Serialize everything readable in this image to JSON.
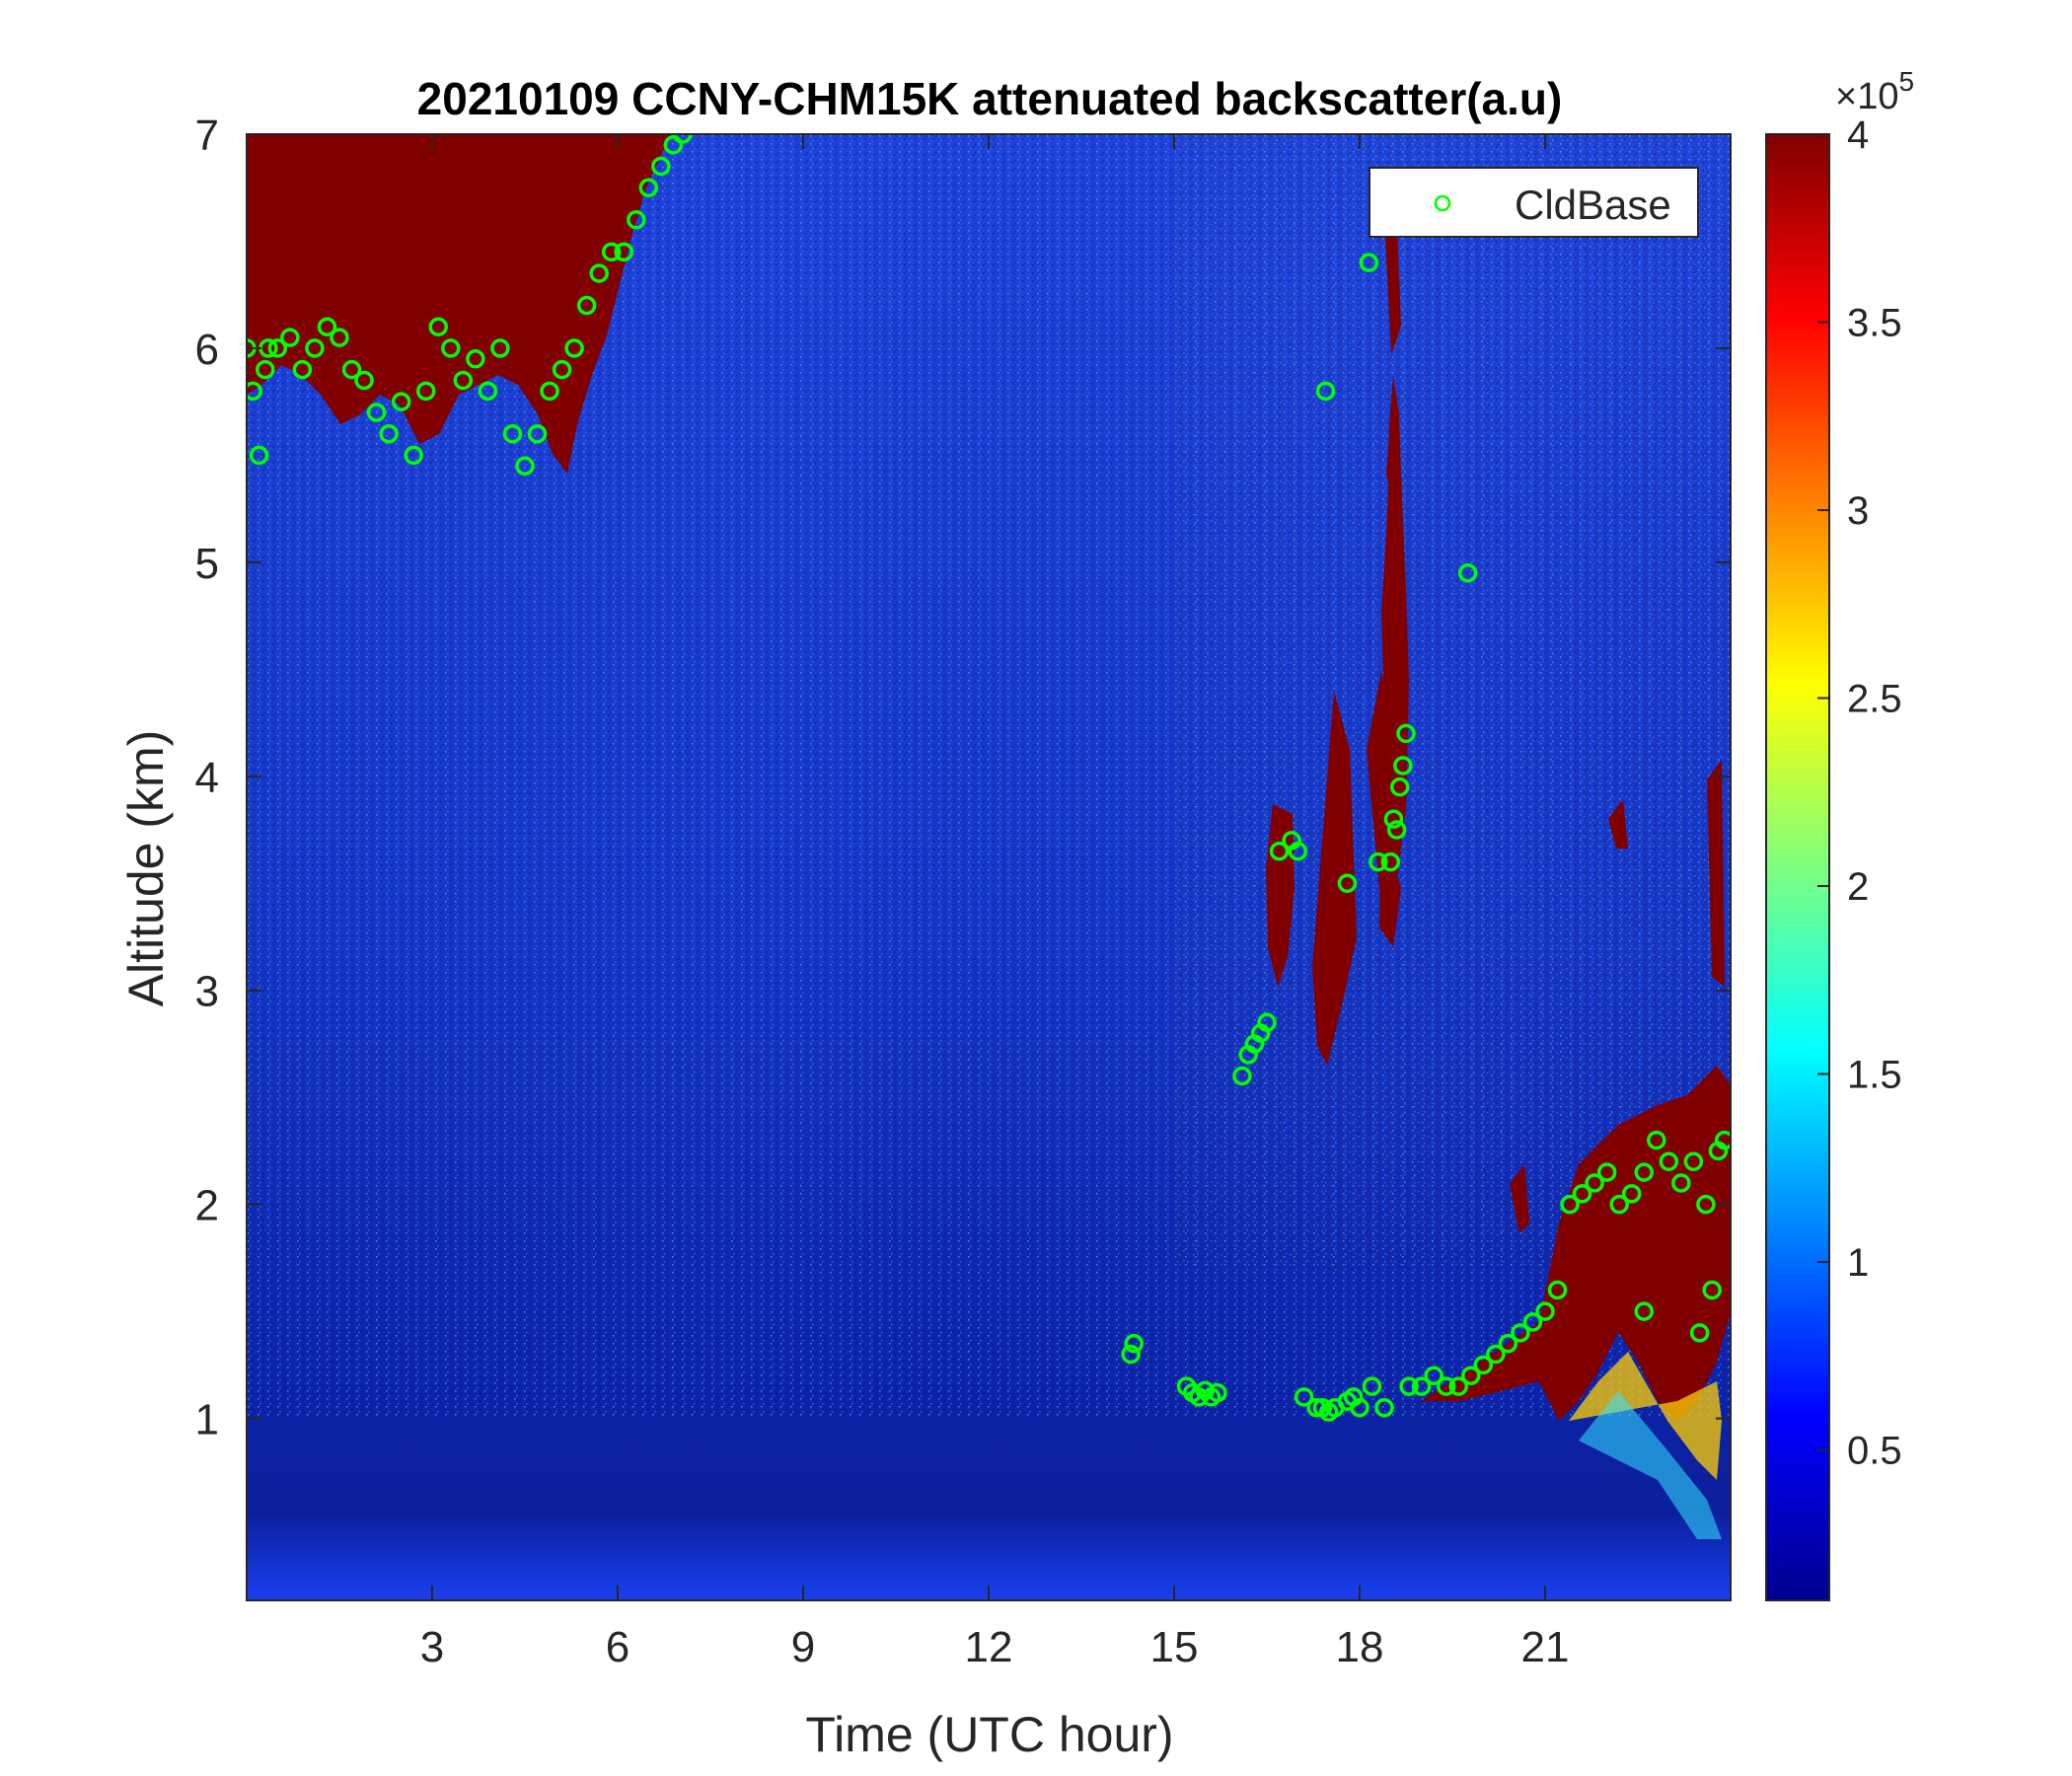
{
  "chart_data": {
    "type": "heatmap",
    "title": "20210109 CCNY-CHM15K attenuated backscatter(a.u)",
    "xlabel": "Time (UTC hour)",
    "ylabel": "Altitude (km)",
    "xlim": [
      0,
      24
    ],
    "ylim": [
      0.15,
      7
    ],
    "x_ticks": [
      3,
      6,
      9,
      12,
      15,
      18,
      21
    ],
    "y_ticks": [
      1,
      2,
      3,
      4,
      5,
      6,
      7
    ],
    "colorbar": {
      "colormap": "jet",
      "range": [
        0.1,
        4
      ],
      "ticks": [
        0.5,
        1,
        1.5,
        2,
        2.5,
        3,
        3.5,
        4
      ],
      "multiplier_label": "×10",
      "multiplier_exponent": "5"
    },
    "legend": {
      "placement": "top-right",
      "label": "CldBase",
      "marker_color": "#00ff00"
    },
    "series": [
      {
        "name": "CldBase",
        "type": "scatter",
        "x": [
          0.0,
          0.1,
          0.2,
          0.3,
          0.35,
          0.5,
          0.7,
          0.9,
          1.1,
          1.3,
          1.5,
          1.7,
          1.9,
          2.1,
          2.3,
          2.5,
          2.7,
          2.9,
          3.1,
          3.3,
          3.5,
          3.7,
          3.9,
          4.1,
          4.3,
          4.5,
          4.7,
          4.9,
          5.1,
          5.3,
          5.5,
          5.7,
          5.9,
          6.1,
          6.3,
          6.5,
          6.7,
          6.9,
          7.05,
          14.3,
          14.35,
          15.2,
          15.3,
          15.4,
          15.5,
          15.6,
          15.7,
          16.1,
          16.2,
          16.3,
          16.4,
          16.5,
          16.7,
          16.9,
          17.0,
          17.1,
          17.3,
          17.4,
          17.5,
          17.6,
          17.8,
          17.9,
          18.0,
          18.2,
          18.4,
          18.5,
          18.6,
          18.65,
          18.7,
          18.75,
          18.8,
          19.0,
          19.2,
          19.4,
          19.6,
          19.8,
          20.0,
          20.2,
          20.4,
          20.6,
          20.8,
          21.0,
          21.2,
          21.4,
          21.6,
          21.8,
          22.0,
          22.2,
          22.4,
          22.6,
          22.8,
          23.0,
          23.2,
          23.4,
          23.6,
          23.8,
          23.9,
          17.45,
          18.15,
          19.75,
          17.8,
          18.3,
          18.55,
          22.6,
          23.5,
          23.7
        ],
        "y": [
          6.0,
          5.8,
          5.5,
          5.9,
          6.0,
          6.0,
          6.05,
          5.9,
          6.0,
          6.1,
          6.05,
          5.9,
          5.85,
          5.7,
          5.6,
          5.75,
          5.5,
          5.8,
          6.1,
          6.0,
          5.85,
          5.95,
          5.8,
          6.0,
          5.6,
          5.45,
          5.6,
          5.8,
          5.9,
          6.0,
          6.2,
          6.35,
          6.45,
          6.45,
          6.6,
          6.75,
          6.85,
          6.95,
          7.0,
          1.3,
          1.35,
          1.15,
          1.12,
          1.1,
          1.13,
          1.1,
          1.12,
          2.6,
          2.7,
          2.75,
          2.8,
          2.85,
          3.65,
          3.7,
          3.65,
          1.1,
          1.05,
          1.05,
          1.03,
          1.05,
          1.08,
          1.1,
          1.05,
          1.15,
          1.05,
          3.6,
          3.75,
          3.95,
          4.05,
          4.2,
          1.15,
          1.15,
          1.2,
          1.15,
          1.15,
          1.2,
          1.25,
          1.3,
          1.35,
          1.4,
          1.45,
          1.5,
          1.6,
          2.0,
          2.05,
          2.1,
          2.15,
          2.0,
          2.05,
          2.15,
          2.3,
          2.2,
          2.1,
          2.2,
          2.0,
          2.25,
          2.3,
          5.8,
          6.4,
          4.95,
          3.5,
          3.6,
          3.8,
          1.5,
          1.4,
          1.6
        ]
      }
    ]
  }
}
